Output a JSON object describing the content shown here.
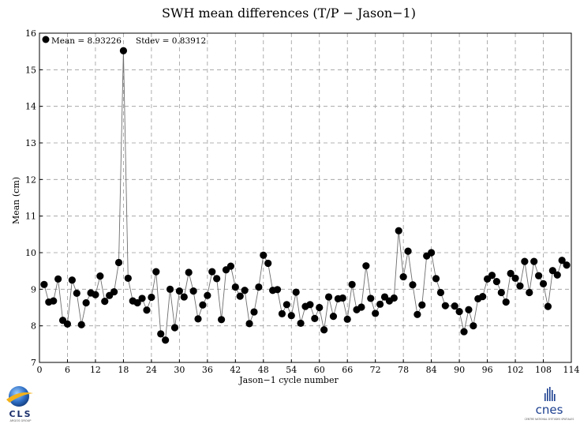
{
  "chart_data": {
    "type": "line",
    "title": "SWH mean differences (T/P − Jason−1)",
    "xlabel": "Jason−1 cycle number",
    "ylabel": "Mean (cm)",
    "xlim": [
      0,
      114
    ],
    "ylim": [
      7,
      16
    ],
    "xticks": [
      0,
      6,
      12,
      18,
      24,
      30,
      36,
      42,
      48,
      54,
      60,
      66,
      72,
      78,
      84,
      90,
      96,
      102,
      108,
      114
    ],
    "yticks": [
      7,
      8,
      9,
      10,
      11,
      12,
      13,
      14,
      15,
      16
    ],
    "grid": true,
    "legend": {
      "position": "top-left",
      "mean_label": "Mean = 8.93226",
      "stdev_label": "Stdev = 0.83912"
    },
    "series": [
      {
        "marker": "circle",
        "color": "#000000",
        "points": [
          [
            1,
            9.13
          ],
          [
            2,
            8.65
          ],
          [
            3,
            8.68
          ],
          [
            4,
            9.28
          ],
          [
            5,
            8.15
          ],
          [
            6,
            8.05
          ],
          [
            7,
            9.25
          ],
          [
            8,
            8.89
          ],
          [
            9,
            8.03
          ],
          [
            10,
            8.63
          ],
          [
            11,
            8.9
          ],
          [
            12,
            8.85
          ],
          [
            13,
            9.36
          ],
          [
            14,
            8.67
          ],
          [
            15,
            8.83
          ],
          [
            16,
            8.93
          ],
          [
            17,
            9.73
          ],
          [
            18,
            15.52
          ],
          [
            19,
            9.3
          ],
          [
            20,
            8.68
          ],
          [
            21,
            8.63
          ],
          [
            22,
            8.75
          ],
          [
            23,
            8.43
          ],
          [
            24,
            8.78
          ],
          [
            25,
            9.48
          ],
          [
            26,
            7.78
          ],
          [
            27,
            7.61
          ],
          [
            28,
            9.0
          ],
          [
            29,
            7.95
          ],
          [
            30,
            8.95
          ],
          [
            31,
            8.79
          ],
          [
            32,
            9.46
          ],
          [
            33,
            8.95
          ],
          [
            34,
            8.19
          ],
          [
            35,
            8.57
          ],
          [
            36,
            8.83
          ],
          [
            37,
            9.48
          ],
          [
            38,
            9.29
          ],
          [
            39,
            8.17
          ],
          [
            40,
            9.53
          ],
          [
            41,
            9.63
          ],
          [
            42,
            9.06
          ],
          [
            43,
            8.81
          ],
          [
            44,
            8.97
          ],
          [
            45,
            8.06
          ],
          [
            46,
            8.38
          ],
          [
            47,
            9.06
          ],
          [
            48,
            9.93
          ],
          [
            49,
            9.71
          ],
          [
            50,
            8.97
          ],
          [
            51,
            8.99
          ],
          [
            52,
            8.33
          ],
          [
            53,
            8.58
          ],
          [
            54,
            8.28
          ],
          [
            55,
            8.92
          ],
          [
            56,
            8.07
          ],
          [
            57,
            8.53
          ],
          [
            58,
            8.58
          ],
          [
            59,
            8.2
          ],
          [
            60,
            8.5
          ],
          [
            61,
            7.89
          ],
          [
            62,
            8.79
          ],
          [
            63,
            8.26
          ],
          [
            64,
            8.74
          ],
          [
            65,
            8.76
          ],
          [
            66,
            8.18
          ],
          [
            67,
            9.13
          ],
          [
            68,
            8.44
          ],
          [
            69,
            8.51
          ],
          [
            70,
            9.64
          ],
          [
            71,
            8.75
          ],
          [
            72,
            8.34
          ],
          [
            73,
            8.59
          ],
          [
            74,
            8.79
          ],
          [
            75,
            8.68
          ],
          [
            76,
            8.76
          ],
          [
            77,
            10.6
          ],
          [
            78,
            9.34
          ],
          [
            79,
            10.04
          ],
          [
            80,
            9.12
          ],
          [
            81,
            8.31
          ],
          [
            82,
            8.57
          ],
          [
            83,
            9.91
          ],
          [
            84,
            10.0
          ],
          [
            85,
            9.29
          ],
          [
            86,
            8.91
          ],
          [
            87,
            8.55
          ],
          [
            89,
            8.54
          ],
          [
            90,
            8.39
          ],
          [
            91,
            7.84
          ],
          [
            92,
            8.44
          ],
          [
            93,
            8.0
          ],
          [
            94,
            8.74
          ],
          [
            95,
            8.8
          ],
          [
            96,
            9.28
          ],
          [
            97,
            9.38
          ],
          [
            98,
            9.21
          ],
          [
            99,
            8.91
          ],
          [
            100,
            8.65
          ],
          [
            101,
            9.43
          ],
          [
            102,
            9.3
          ],
          [
            103,
            9.09
          ],
          [
            104,
            9.76
          ],
          [
            105,
            8.91
          ],
          [
            106,
            9.76
          ],
          [
            107,
            9.37
          ],
          [
            108,
            9.15
          ],
          [
            109,
            8.53
          ],
          [
            110,
            9.51
          ],
          [
            111,
            9.39
          ],
          [
            112,
            9.79
          ],
          [
            113,
            9.66
          ]
        ]
      }
    ]
  },
  "logos": {
    "left": {
      "name": "cls-logo",
      "text": "CLS",
      "caption": "ARGOS GROUP"
    },
    "right": {
      "name": "cnes-logo",
      "text": "cnes",
      "caption": "CENTRE NATIONAL D'ETUDES SPATIALES"
    }
  }
}
